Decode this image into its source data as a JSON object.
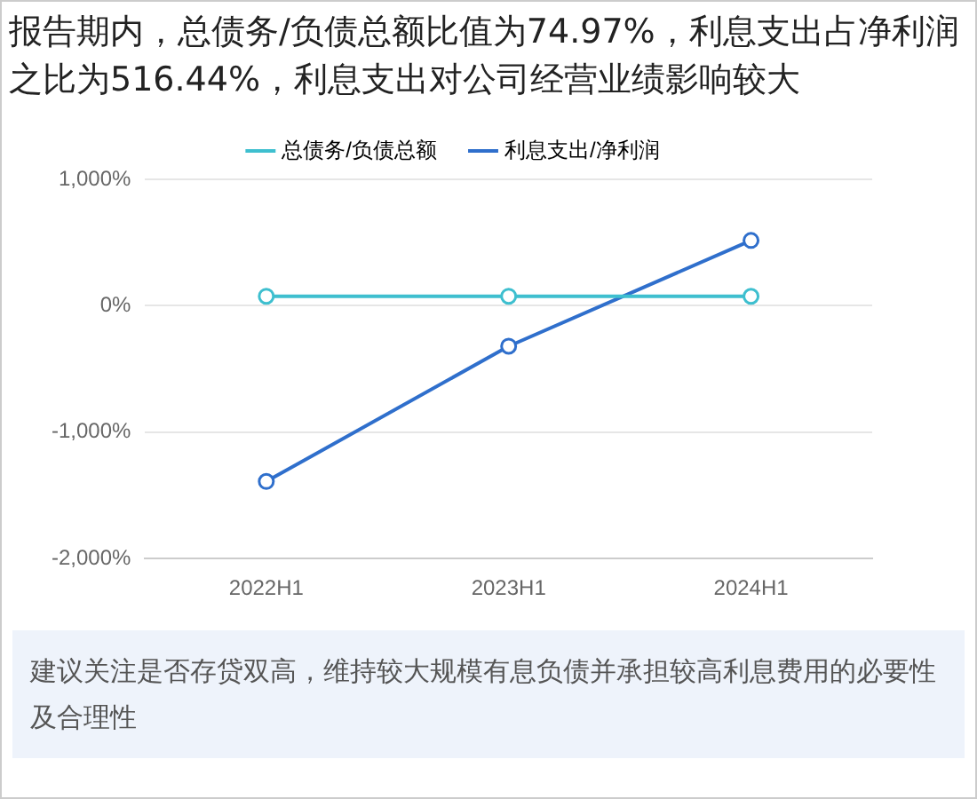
{
  "chart_data": {
    "type": "line",
    "title": "报告期内，总债务/负债总额比值为74.97%，利息支出占净利润之比为516.44%，利息支出对公司经营业绩影响较大",
    "categories": [
      "2022H1",
      "2023H1",
      "2024H1"
    ],
    "series": [
      {
        "name": "总债务/负债总额",
        "color": "#3ebfcf",
        "values": [
          75,
          75,
          74.97
        ]
      },
      {
        "name": "利息支出/净利润",
        "color": "#2f6fcc",
        "values": [
          -1390,
          -320,
          516.44
        ]
      }
    ],
    "ylim": [
      -2000,
      1000
    ],
    "yticks": [
      {
        "value": -2000,
        "label": "-2,000%"
      },
      {
        "value": -1000,
        "label": "-1,000%"
      },
      {
        "value": 0,
        "label": "0%"
      },
      {
        "value": 1000,
        "label": "1,000%"
      }
    ],
    "grid": "y",
    "legend": "top",
    "marker": "circle",
    "line_style": "solid",
    "annotations": [
      "建议关注是否存贷双高，维持较大规模有息负债并承担较高利息费用的必要性及合理性"
    ]
  }
}
